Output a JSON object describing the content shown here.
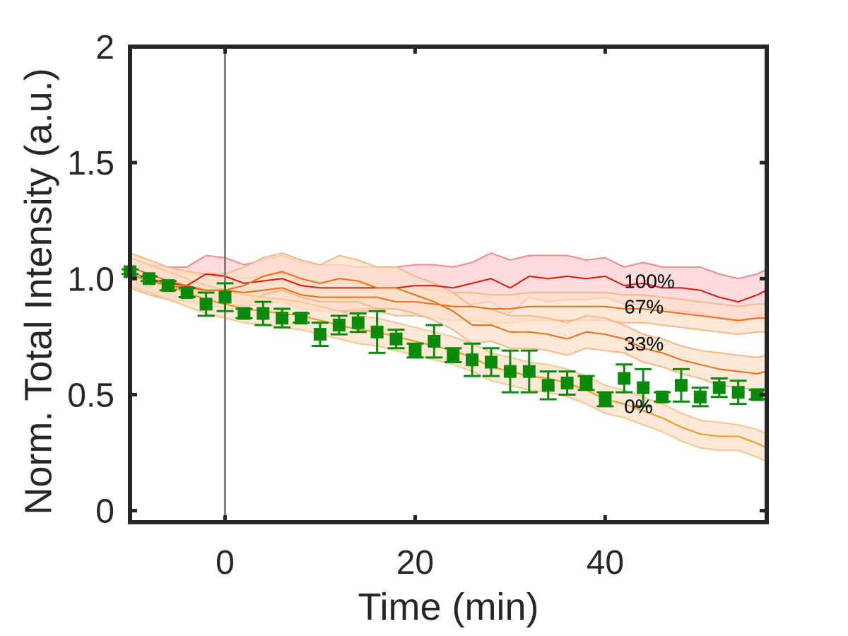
{
  "chart_data": {
    "type": "line",
    "title": "",
    "xlabel": "Time (min)",
    "ylabel": "Norm. Total Intensity (a.u.)",
    "xlim": [
      -10,
      57
    ],
    "ylim": [
      -0.05,
      2
    ],
    "xticks": [
      0,
      20,
      40
    ],
    "yticks": [
      0,
      0.5,
      1.0,
      1.5,
      2
    ],
    "ytick_labels": [
      "0",
      "0.5",
      "1.0",
      "1.5",
      "2"
    ],
    "grid": false,
    "legend": "none",
    "vline_x": 0,
    "annotations": [
      {
        "text": "100%",
        "x": 42,
        "y": 0.96
      },
      {
        "text": "67%",
        "x": 42,
        "y": 0.85
      },
      {
        "text": "33%",
        "x": 42,
        "y": 0.69
      },
      {
        "text": "0%",
        "x": 42,
        "y": 0.42
      }
    ],
    "bands": [
      {
        "name": "",
        "color": "#e8140b",
        "fill": "#fdcfd2",
        "edge": "#f28a8a",
        "x": [
          -10,
          -8,
          -6,
          -4,
          -2,
          0,
          2,
          4,
          6,
          8,
          10,
          12,
          14,
          16,
          18,
          20,
          22,
          24,
          26,
          28,
          30,
          32,
          34,
          36,
          38,
          40,
          42,
          44,
          46,
          48,
          50,
          52,
          54,
          56,
          57
        ],
        "mean": [
          1.03,
          1.0,
          0.98,
          0.97,
          1.02,
          1.01,
          0.98,
          0.99,
          1.0,
          0.97,
          0.96,
          0.96,
          0.96,
          0.96,
          0.96,
          0.97,
          0.97,
          0.96,
          0.98,
          1.0,
          0.96,
          1.01,
          1.0,
          1.01,
          1.0,
          1.01,
          0.97,
          0.98,
          0.96,
          0.96,
          0.95,
          0.92,
          0.9,
          0.93,
          0.95
        ],
        "upper": [
          1.09,
          1.06,
          1.05,
          1.05,
          1.1,
          1.09,
          1.06,
          1.08,
          1.1,
          1.07,
          1.06,
          1.06,
          1.05,
          1.05,
          1.05,
          1.06,
          1.06,
          1.05,
          1.07,
          1.11,
          1.08,
          1.1,
          1.1,
          1.1,
          1.08,
          1.09,
          1.05,
          1.07,
          1.05,
          1.05,
          1.05,
          1.02,
          1.0,
          1.02,
          1.04
        ],
        "lower": [
          0.97,
          0.94,
          0.92,
          0.9,
          0.95,
          0.93,
          0.9,
          0.9,
          0.9,
          0.87,
          0.86,
          0.86,
          0.87,
          0.87,
          0.87,
          0.88,
          0.88,
          0.87,
          0.89,
          0.9,
          0.85,
          0.92,
          0.9,
          0.91,
          0.91,
          0.92,
          0.89,
          0.89,
          0.87,
          0.86,
          0.85,
          0.83,
          0.81,
          0.83,
          0.85
        ]
      },
      {
        "name": "",
        "color": "#ef6c1a",
        "fill": "#fde0ca",
        "edge": "#f6b888",
        "x": [
          -10,
          -8,
          -6,
          -4,
          -2,
          0,
          2,
          4,
          6,
          8,
          10,
          12,
          14,
          16,
          18,
          20,
          22,
          24,
          26,
          28,
          30,
          32,
          34,
          36,
          38,
          40,
          42,
          44,
          46,
          48,
          50,
          52,
          54,
          56,
          57
        ],
        "mean": [
          1.02,
          0.99,
          0.97,
          0.96,
          0.95,
          0.95,
          0.94,
          0.95,
          0.96,
          0.93,
          0.92,
          0.92,
          0.92,
          0.92,
          0.9,
          0.9,
          0.89,
          0.88,
          0.88,
          0.87,
          0.87,
          0.88,
          0.88,
          0.88,
          0.88,
          0.88,
          0.87,
          0.87,
          0.86,
          0.85,
          0.84,
          0.83,
          0.82,
          0.83,
          0.83
        ],
        "upper": [
          1.08,
          1.05,
          1.03,
          1.02,
          1.01,
          1.01,
          1.0,
          1.01,
          1.02,
          0.99,
          0.98,
          0.98,
          0.98,
          0.98,
          0.96,
          0.96,
          0.95,
          0.94,
          0.94,
          0.93,
          0.93,
          0.94,
          0.94,
          0.94,
          0.94,
          0.94,
          0.93,
          0.93,
          0.92,
          0.91,
          0.9,
          0.89,
          0.88,
          0.89,
          0.89
        ],
        "lower": [
          0.96,
          0.93,
          0.91,
          0.9,
          0.89,
          0.89,
          0.88,
          0.89,
          0.9,
          0.87,
          0.86,
          0.86,
          0.86,
          0.86,
          0.84,
          0.84,
          0.83,
          0.82,
          0.82,
          0.81,
          0.81,
          0.82,
          0.82,
          0.82,
          0.82,
          0.82,
          0.81,
          0.81,
          0.8,
          0.79,
          0.78,
          0.77,
          0.76,
          0.77,
          0.77
        ]
      },
      {
        "name": "",
        "color": "#ef6c1a",
        "fill": "#fde0ca",
        "edge": "#f6b888",
        "x": [
          -10,
          -8,
          -6,
          -4,
          -2,
          0,
          2,
          4,
          6,
          8,
          10,
          12,
          14,
          16,
          18,
          20,
          22,
          24,
          26,
          28,
          30,
          32,
          34,
          36,
          38,
          40,
          42,
          44,
          46,
          48,
          50,
          52,
          54,
          56,
          57
        ],
        "mean": [
          1.05,
          1.02,
          0.99,
          0.97,
          0.95,
          0.95,
          0.97,
          1.01,
          1.03,
          1.0,
          0.98,
          1.0,
          0.99,
          0.96,
          0.96,
          0.93,
          0.9,
          0.86,
          0.8,
          0.8,
          0.77,
          0.77,
          0.76,
          0.74,
          0.77,
          0.76,
          0.74,
          0.7,
          0.68,
          0.65,
          0.63,
          0.61,
          0.6,
          0.59,
          0.6
        ],
        "upper": [
          1.11,
          1.08,
          1.05,
          1.03,
          1.02,
          1.02,
          1.05,
          1.09,
          1.11,
          1.08,
          1.06,
          1.1,
          1.08,
          1.05,
          1.05,
          1.01,
          0.98,
          0.94,
          0.88,
          0.87,
          0.84,
          0.84,
          0.83,
          0.81,
          0.84,
          0.83,
          0.8,
          0.76,
          0.74,
          0.71,
          0.69,
          0.68,
          0.67,
          0.66,
          0.67
        ],
        "lower": [
          0.99,
          0.96,
          0.93,
          0.91,
          0.88,
          0.88,
          0.89,
          0.93,
          0.95,
          0.92,
          0.9,
          0.9,
          0.9,
          0.87,
          0.87,
          0.85,
          0.82,
          0.78,
          0.72,
          0.73,
          0.7,
          0.7,
          0.69,
          0.67,
          0.7,
          0.69,
          0.68,
          0.64,
          0.62,
          0.59,
          0.57,
          0.54,
          0.53,
          0.52,
          0.53
        ]
      },
      {
        "name": "",
        "color": "#f09a1c",
        "fill": "#fde0ca",
        "edge": "#f8c590",
        "x": [
          -10,
          -8,
          -6,
          -4,
          -2,
          0,
          2,
          4,
          6,
          8,
          10,
          12,
          14,
          16,
          18,
          20,
          22,
          24,
          26,
          28,
          30,
          32,
          34,
          36,
          38,
          40,
          42,
          44,
          46,
          48,
          50,
          52,
          54,
          56,
          57
        ],
        "mean": [
          1.03,
          1.0,
          0.97,
          0.94,
          0.91,
          0.89,
          0.87,
          0.86,
          0.85,
          0.84,
          0.82,
          0.8,
          0.78,
          0.77,
          0.75,
          0.73,
          0.71,
          0.69,
          0.66,
          0.62,
          0.6,
          0.58,
          0.57,
          0.55,
          0.52,
          0.48,
          0.46,
          0.43,
          0.4,
          0.36,
          0.33,
          0.32,
          0.32,
          0.29,
          0.27
        ],
        "upper": [
          1.09,
          1.06,
          1.03,
          1.0,
          0.97,
          0.95,
          0.93,
          0.92,
          0.91,
          0.9,
          0.88,
          0.86,
          0.84,
          0.83,
          0.81,
          0.79,
          0.77,
          0.75,
          0.72,
          0.68,
          0.66,
          0.64,
          0.63,
          0.61,
          0.58,
          0.54,
          0.52,
          0.49,
          0.46,
          0.42,
          0.39,
          0.38,
          0.37,
          0.35,
          0.33
        ],
        "lower": [
          0.97,
          0.94,
          0.91,
          0.88,
          0.85,
          0.83,
          0.81,
          0.8,
          0.79,
          0.78,
          0.76,
          0.74,
          0.72,
          0.71,
          0.69,
          0.67,
          0.65,
          0.63,
          0.6,
          0.56,
          0.54,
          0.52,
          0.51,
          0.49,
          0.46,
          0.42,
          0.4,
          0.37,
          0.34,
          0.3,
          0.27,
          0.26,
          0.26,
          0.23,
          0.21
        ]
      }
    ],
    "points": {
      "name": "",
      "color": "#0a8a0a",
      "x": [
        -10,
        -8,
        -6,
        -4,
        -2,
        0,
        2,
        4,
        6,
        8,
        10,
        12,
        14,
        16,
        18,
        20,
        22,
        24,
        26,
        28,
        30,
        32,
        34,
        36,
        38,
        40,
        42,
        44,
        46,
        48,
        50,
        52,
        54,
        56
      ],
      "y": [
        1.03,
        1.0,
        0.97,
        0.94,
        0.89,
        0.92,
        0.85,
        0.85,
        0.83,
        0.83,
        0.76,
        0.8,
        0.81,
        0.77,
        0.74,
        0.69,
        0.73,
        0.67,
        0.65,
        0.64,
        0.6,
        0.6,
        0.54,
        0.55,
        0.55,
        0.48,
        0.57,
        0.53,
        0.49,
        0.54,
        0.49,
        0.53,
        0.51,
        0.5
      ],
      "err": [
        0.01,
        0.01,
        0.02,
        0.02,
        0.05,
        0.06,
        0.02,
        0.05,
        0.04,
        0.02,
        0.05,
        0.04,
        0.04,
        0.09,
        0.04,
        0.03,
        0.07,
        0.03,
        0.07,
        0.06,
        0.09,
        0.09,
        0.06,
        0.05,
        0.03,
        0.03,
        0.06,
        0.08,
        0.02,
        0.07,
        0.04,
        0.04,
        0.05,
        0.02
      ]
    }
  }
}
